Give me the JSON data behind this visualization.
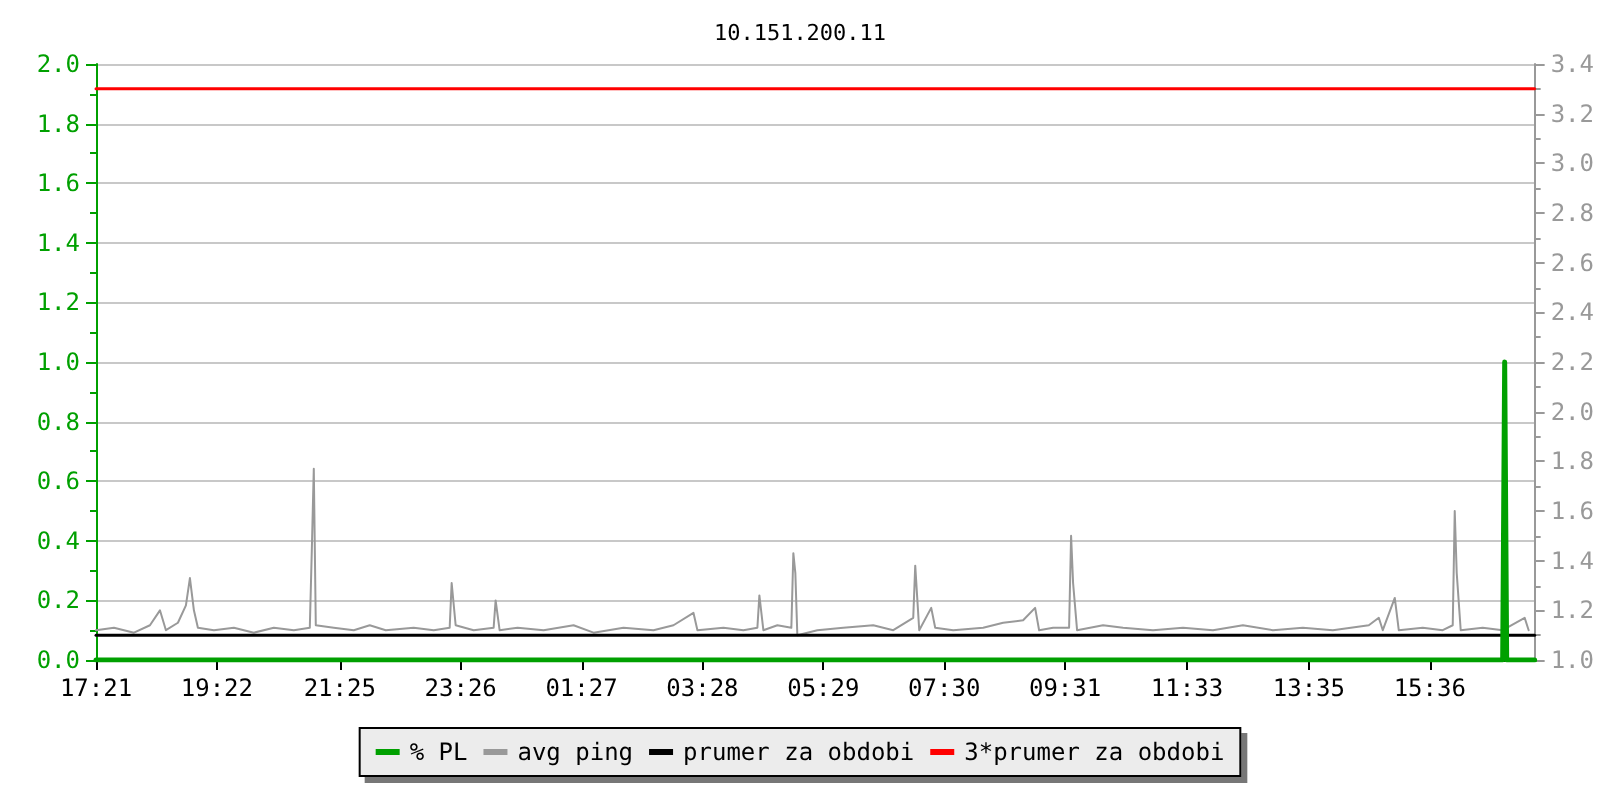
{
  "chart_data": {
    "type": "line",
    "title": "10.151.200.11",
    "xlim": [
      "--01-01T17:21",
      "--01-02T17:21"
    ],
    "xticks": [
      {
        "value": "--01-01T17:21",
        "label": "17:21"
      },
      {
        "value": "--01-01T19:22",
        "label": "19:22"
      },
      {
        "value": "--01-01T21:25",
        "label": "21:25"
      },
      {
        "value": "--01-01T23:26",
        "label": "23:26"
      },
      {
        "value": "--01-02T01:27",
        "label": "01:27"
      },
      {
        "value": "--01-02T03:28",
        "label": "03:28"
      },
      {
        "value": "--01-02T05:29",
        "label": "05:29"
      },
      {
        "value": "--01-02T07:30",
        "label": "07:30"
      },
      {
        "value": "--01-02T09:31",
        "label": "09:31"
      },
      {
        "value": "--01-02T11:33",
        "label": "11:33"
      },
      {
        "value": "--01-02T13:35",
        "label": "13:35"
      },
      {
        "value": "--01-02T15:36",
        "label": "15:36"
      }
    ],
    "ylim": [
      0,
      2
    ],
    "yticks": [
      {
        "value": 0,
        "label": "0.0"
      },
      0.2,
      0.4,
      0.6,
      0.8,
      {
        "value": 1,
        "label": "1.0"
      },
      1.2,
      1.4,
      1.6,
      1.8,
      {
        "value": 2,
        "label": "2.0"
      }
    ],
    "y2lim": [
      1,
      3.4
    ],
    "y2ticks": [
      {
        "value": 1,
        "label": "1.0"
      },
      1.2,
      1.4,
      1.6,
      1.8,
      {
        "value": 2,
        "label": "2.0"
      },
      2.2,
      2.4,
      2.6,
      2.8,
      {
        "value": 3,
        "label": "3.0"
      },
      3.2,
      3.4
    ],
    "grid": "y",
    "legend": "bottom",
    "marker": "none",
    "line_style": "solid",
    "series": [
      {
        "name": "% PL",
        "color": "#00a000",
        "x": [
          "--01-01T17:21",
          "--01-02T16:49",
          "--01-02T16:51",
          "--01-02T16:53",
          "--01-02T17:21"
        ],
        "values": [
          0,
          0,
          1.0,
          0,
          0
        ]
      },
      {
        "name": "avg ping",
        "color": "#999999",
        "axis": "y2",
        "x": [
          "--01-01T17:21",
          "--01-01T17:39",
          "--01-01T17:59",
          "--01-01T18:15",
          "--01-01T18:25",
          "--01-01T18:31",
          "--01-01T18:43",
          "--01-01T18:51",
          "--01-01T18:55",
          "--01-01T18:59",
          "--01-01T19:03",
          "--01-01T19:19",
          "--01-01T19:39",
          "--01-01T19:59",
          "--01-01T20:19",
          "--01-01T20:39",
          "--01-01T20:55",
          "--01-01T20:57",
          "--01-01T20:59",
          "--01-01T21:01",
          "--01-01T21:19",
          "--01-01T21:39",
          "--01-01T21:55",
          "--01-01T22:11",
          "--01-01T22:39",
          "--01-01T22:59",
          "--01-01T23:15",
          "--01-01T23:17",
          "--01-01T23:21",
          "--01-01T23:39",
          "--01-01T23:59",
          "--01-02T00:01",
          "--01-02T00:05",
          "--01-02T00:23",
          "--01-02T00:49",
          "--01-02T01:19",
          "--01-02T01:39",
          "--01-02T02:09",
          "--01-02T02:39",
          "--01-02T02:59",
          "--01-02T03:19",
          "--01-02T03:23",
          "--01-02T03:49",
          "--01-02T04:09",
          "--01-02T04:23",
          "--01-02T04:25",
          "--01-02T04:29",
          "--01-02T04:43",
          "--01-02T04:57",
          "--01-02T04:59",
          "--01-02T05:01",
          "--01-02T05:03",
          "--01-02T05:23",
          "--01-02T05:49",
          "--01-02T06:19",
          "--01-02T06:39",
          "--01-02T06:59",
          "--01-02T07:01",
          "--01-02T07:03",
          "--01-02T07:05",
          "--01-02T07:17",
          "--01-02T07:21",
          "--01-02T07:39",
          "--01-02T08:09",
          "--01-02T08:29",
          "--01-02T08:49",
          "--01-02T09:01",
          "--01-02T09:05",
          "--01-02T09:19",
          "--01-02T09:35",
          "--01-02T09:37",
          "--01-02T09:39",
          "--01-02T09:43",
          "--01-02T10:09",
          "--01-02T10:29",
          "--01-02T10:59",
          "--01-02T11:29",
          "--01-02T11:59",
          "--01-02T12:29",
          "--01-02T12:59",
          "--01-02T13:29",
          "--01-02T13:59",
          "--01-02T14:35",
          "--01-02T14:45",
          "--01-02T14:49",
          "--01-02T15:01",
          "--01-02T15:05",
          "--01-02T15:29",
          "--01-02T15:49",
          "--01-02T15:59",
          "--01-02T16:01",
          "--01-02T16:03",
          "--01-02T16:07",
          "--01-02T16:29",
          "--01-02T16:49",
          "--01-02T17:11",
          "--01-02T17:15"
        ],
        "values": [
          1.12,
          1.13,
          1.11,
          1.14,
          1.2,
          1.12,
          1.15,
          1.22,
          1.33,
          1.2,
          1.13,
          1.12,
          1.13,
          1.11,
          1.13,
          1.12,
          1.13,
          1.44,
          1.77,
          1.14,
          1.13,
          1.12,
          1.14,
          1.12,
          1.13,
          1.12,
          1.13,
          1.31,
          1.14,
          1.12,
          1.13,
          1.24,
          1.12,
          1.13,
          1.12,
          1.14,
          1.11,
          1.13,
          1.12,
          1.14,
          1.19,
          1.12,
          1.13,
          1.12,
          1.13,
          1.26,
          1.12,
          1.14,
          1.13,
          1.43,
          1.35,
          1.1,
          1.12,
          1.13,
          1.14,
          1.12,
          1.17,
          1.38,
          1.25,
          1.12,
          1.21,
          1.13,
          1.12,
          1.13,
          1.15,
          1.16,
          1.21,
          1.12,
          1.13,
          1.13,
          1.5,
          1.31,
          1.12,
          1.14,
          1.13,
          1.12,
          1.13,
          1.12,
          1.14,
          1.12,
          1.13,
          1.12,
          1.14,
          1.17,
          1.12,
          1.25,
          1.12,
          1.13,
          1.12,
          1.14,
          1.6,
          1.35,
          1.12,
          1.13,
          1.12,
          1.17,
          1.12
        ]
      },
      {
        "name": "prumer za obdobi",
        "color": "#000000",
        "axis": "y2",
        "x": [
          "--01-01T17:21",
          "--01-02T17:21"
        ],
        "values": [
          1.1,
          1.1
        ]
      },
      {
        "name": "3*prumer za obdobi",
        "color": "#ff0000",
        "axis": "y2",
        "x": [
          "--01-01T17:21",
          "--01-02T17:21"
        ],
        "values": [
          3.3,
          3.3
        ]
      }
    ]
  }
}
